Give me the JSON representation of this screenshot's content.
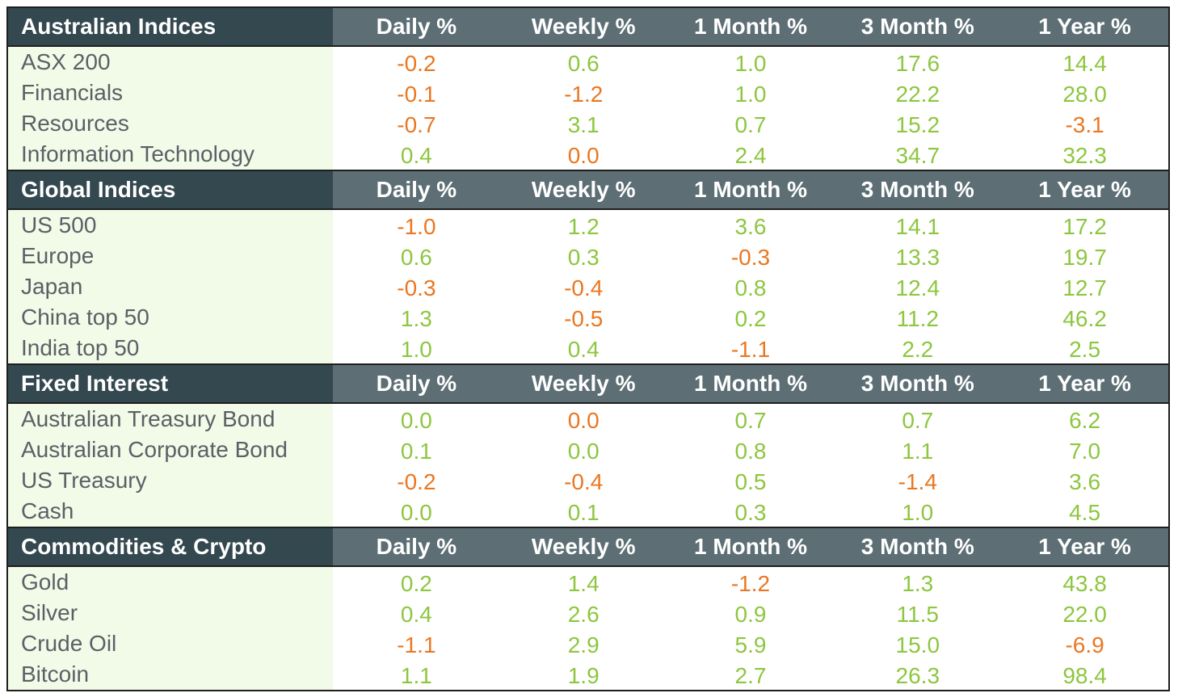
{
  "columns": [
    "Daily %",
    "Weekly %",
    "1 Month %",
    "3 Month %",
    "1 Year %"
  ],
  "colors": {
    "positive": "#8dc63f",
    "negative": "#ea7721",
    "header_dark": "#344850",
    "header": "#5d6f75",
    "label_bg": "#f1fbe8"
  },
  "sections": [
    {
      "title": "Australian Indices",
      "rows": [
        {
          "name": "ASX 200",
          "values": [
            "-0.2",
            "0.6",
            "1.0",
            "17.6",
            "14.4"
          ],
          "signs": [
            "neg",
            "pos",
            "pos",
            "pos",
            "pos"
          ]
        },
        {
          "name": "Financials",
          "values": [
            "-0.1",
            "-1.2",
            "1.0",
            "22.2",
            "28.0"
          ],
          "signs": [
            "neg",
            "neg",
            "pos",
            "pos",
            "pos"
          ]
        },
        {
          "name": "Resources",
          "values": [
            "-0.7",
            "3.1",
            "0.7",
            "15.2",
            "-3.1"
          ],
          "signs": [
            "neg",
            "pos",
            "pos",
            "pos",
            "neg"
          ]
        },
        {
          "name": "Information Technology",
          "values": [
            "0.4",
            "0.0",
            "2.4",
            "34.7",
            "32.3"
          ],
          "signs": [
            "pos",
            "neg",
            "pos",
            "pos",
            "pos"
          ]
        }
      ]
    },
    {
      "title": "Global Indices",
      "rows": [
        {
          "name": "US 500",
          "values": [
            "-1.0",
            "1.2",
            "3.6",
            "14.1",
            "17.2"
          ],
          "signs": [
            "neg",
            "pos",
            "pos",
            "pos",
            "pos"
          ]
        },
        {
          "name": "Europe",
          "values": [
            "0.6",
            "0.3",
            "-0.3",
            "13.3",
            "19.7"
          ],
          "signs": [
            "pos",
            "pos",
            "neg",
            "pos",
            "pos"
          ]
        },
        {
          "name": "Japan",
          "values": [
            "-0.3",
            "-0.4",
            "0.8",
            "12.4",
            "12.7"
          ],
          "signs": [
            "neg",
            "neg",
            "pos",
            "pos",
            "pos"
          ]
        },
        {
          "name": "China top 50",
          "values": [
            "1.3",
            "-0.5",
            "0.2",
            "11.2",
            "46.2"
          ],
          "signs": [
            "pos",
            "neg",
            "pos",
            "pos",
            "pos"
          ]
        },
        {
          "name": "India top 50",
          "values": [
            "1.0",
            "0.4",
            "-1.1",
            "2.2",
            "2.5"
          ],
          "signs": [
            "pos",
            "pos",
            "neg",
            "pos",
            "pos"
          ]
        }
      ]
    },
    {
      "title": "Fixed Interest",
      "rows": [
        {
          "name": "Australian Treasury Bond",
          "values": [
            "0.0",
            "0.0",
            "0.7",
            "0.7",
            "6.2"
          ],
          "signs": [
            "pos",
            "neg",
            "pos",
            "pos",
            "pos"
          ]
        },
        {
          "name": "Australian Corporate Bond",
          "values": [
            "0.1",
            "0.0",
            "0.8",
            "1.1",
            "7.0"
          ],
          "signs": [
            "pos",
            "pos",
            "pos",
            "pos",
            "pos"
          ]
        },
        {
          "name": "US Treasury",
          "values": [
            "-0.2",
            "-0.4",
            "0.5",
            "-1.4",
            "3.6"
          ],
          "signs": [
            "neg",
            "neg",
            "pos",
            "neg",
            "pos"
          ]
        },
        {
          "name": "Cash",
          "values": [
            "0.0",
            "0.1",
            "0.3",
            "1.0",
            "4.5"
          ],
          "signs": [
            "pos",
            "pos",
            "pos",
            "pos",
            "pos"
          ]
        }
      ]
    },
    {
      "title": "Commodities & Crypto",
      "rows": [
        {
          "name": "Gold",
          "values": [
            "0.2",
            "1.4",
            "-1.2",
            "1.3",
            "43.8"
          ],
          "signs": [
            "pos",
            "pos",
            "neg",
            "pos",
            "pos"
          ]
        },
        {
          "name": "Silver",
          "values": [
            "0.4",
            "2.6",
            "0.9",
            "11.5",
            "22.0"
          ],
          "signs": [
            "pos",
            "pos",
            "pos",
            "pos",
            "pos"
          ]
        },
        {
          "name": "Crude Oil",
          "values": [
            "-1.1",
            "2.9",
            "5.9",
            "15.0",
            "-6.9"
          ],
          "signs": [
            "neg",
            "pos",
            "pos",
            "pos",
            "neg"
          ]
        },
        {
          "name": "Bitcoin",
          "values": [
            "1.1",
            "1.9",
            "2.7",
            "26.3",
            "98.4"
          ],
          "signs": [
            "pos",
            "pos",
            "pos",
            "pos",
            "pos"
          ]
        }
      ]
    }
  ]
}
